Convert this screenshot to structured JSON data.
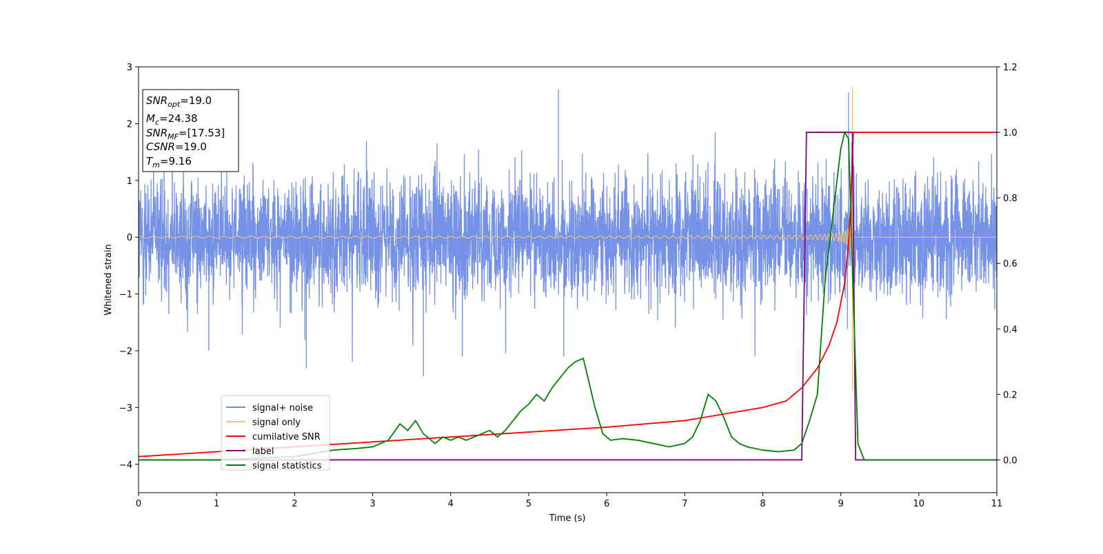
{
  "chart_data": {
    "type": "line",
    "xlabel": "Time (s)",
    "ylabel": "Whitened strain",
    "xlim": [
      0,
      11
    ],
    "ylim_left": [
      -4.5,
      3
    ],
    "ylim_right": [
      -0.1,
      1.2
    ],
    "xticks": [
      0,
      1,
      2,
      3,
      4,
      5,
      6,
      7,
      8,
      9,
      10,
      11
    ],
    "yticks_left": [
      -4,
      -3,
      -2,
      -1,
      0,
      1,
      2,
      3
    ],
    "yticks_right": [
      0.0,
      0.2,
      0.4,
      0.6,
      0.8,
      1.0,
      1.2
    ],
    "xtick_labels": [
      "0",
      "1",
      "2",
      "3",
      "4",
      "5",
      "6",
      "7",
      "8",
      "9",
      "10",
      "11"
    ],
    "ytick_labels_left": [
      "−4",
      "−3",
      "−2",
      "−1",
      "0",
      "1",
      "2",
      "3"
    ],
    "ytick_labels_right": [
      "0.0",
      "0.2",
      "0.4",
      "0.6",
      "0.8",
      "1.0",
      "1.2"
    ],
    "grid": false,
    "legend_position": "lower-left",
    "info_box": {
      "snr_opt": {
        "base": "SNR",
        "sub": "opt",
        "value": "=19.0"
      },
      "mc": {
        "base": "M",
        "sub": "c",
        "value": "=24.38"
      },
      "snr_mf": {
        "base": "SNR",
        "sub": "MF",
        "value": "=[17.53]"
      },
      "csnr": {
        "base": "CSNR",
        "value": "=19.0"
      },
      "tm": {
        "base": "T",
        "sub": "m",
        "value": "=9.16"
      }
    },
    "merger_time": 9.16,
    "series": [
      {
        "name": "signal+ noise",
        "axis": "left",
        "color": "#6f8ce6",
        "description_values": {
          "noise_band": [
            -1.2,
            1.2
          ],
          "max_peak": 2.6,
          "min_peak": -2.45
        }
      },
      {
        "name": "signal only",
        "axis": "left",
        "color": "#f5c86a",
        "description_values": {
          "start_amplitude": 0.02,
          "peak_time": 9.16,
          "peak_max": 2.65,
          "peak_min": -2.7
        }
      },
      {
        "name": "cumilative SNR",
        "axis": "right",
        "color": "#ff0000",
        "x": [
          0,
          1,
          2,
          3,
          4,
          5,
          6,
          7,
          7.5,
          8,
          8.3,
          8.5,
          8.7,
          8.85,
          8.95,
          9.05,
          9.1,
          9.13,
          9.16,
          11
        ],
        "y": [
          0.01,
          0.025,
          0.04,
          0.055,
          0.07,
          0.085,
          0.1,
          0.12,
          0.14,
          0.16,
          0.18,
          0.22,
          0.28,
          0.35,
          0.42,
          0.54,
          0.66,
          0.8,
          1.0,
          1.0
        ]
      },
      {
        "name": "label",
        "axis": "right",
        "color": "#800080",
        "x": [
          0,
          8.5,
          8.56,
          9.15,
          9.19,
          11
        ],
        "y": [
          0,
          0,
          1,
          1,
          0,
          0
        ]
      },
      {
        "name": "signal statistics",
        "axis": "right",
        "color": "#008000",
        "x": [
          0,
          1,
          2,
          2.5,
          2.8,
          3,
          3.2,
          3.35,
          3.45,
          3.55,
          3.65,
          3.8,
          3.9,
          4.0,
          4.1,
          4.2,
          4.3,
          4.4,
          4.5,
          4.6,
          4.7,
          4.8,
          4.9,
          5.0,
          5.1,
          5.2,
          5.3,
          5.4,
          5.5,
          5.6,
          5.7,
          5.75,
          5.85,
          5.95,
          6.05,
          6.2,
          6.4,
          6.6,
          6.8,
          7.0,
          7.1,
          7.2,
          7.3,
          7.4,
          7.5,
          7.6,
          7.7,
          7.8,
          8.0,
          8.2,
          8.4,
          8.5,
          8.6,
          8.7,
          8.8,
          8.9,
          9.0,
          9.05,
          9.1,
          9.16,
          9.22,
          9.3,
          11
        ],
        "y": [
          0.0,
          0.0,
          0.01,
          0.03,
          0.035,
          0.04,
          0.06,
          0.11,
          0.09,
          0.12,
          0.08,
          0.05,
          0.07,
          0.06,
          0.07,
          0.06,
          0.07,
          0.08,
          0.09,
          0.07,
          0.09,
          0.12,
          0.15,
          0.17,
          0.2,
          0.18,
          0.22,
          0.25,
          0.28,
          0.3,
          0.31,
          0.26,
          0.16,
          0.08,
          0.06,
          0.065,
          0.06,
          0.05,
          0.04,
          0.05,
          0.07,
          0.12,
          0.2,
          0.18,
          0.13,
          0.07,
          0.05,
          0.04,
          0.03,
          0.025,
          0.03,
          0.05,
          0.12,
          0.2,
          0.55,
          0.75,
          0.95,
          1.0,
          0.98,
          0.5,
          0.05,
          0.0,
          0.0
        ]
      }
    ]
  }
}
